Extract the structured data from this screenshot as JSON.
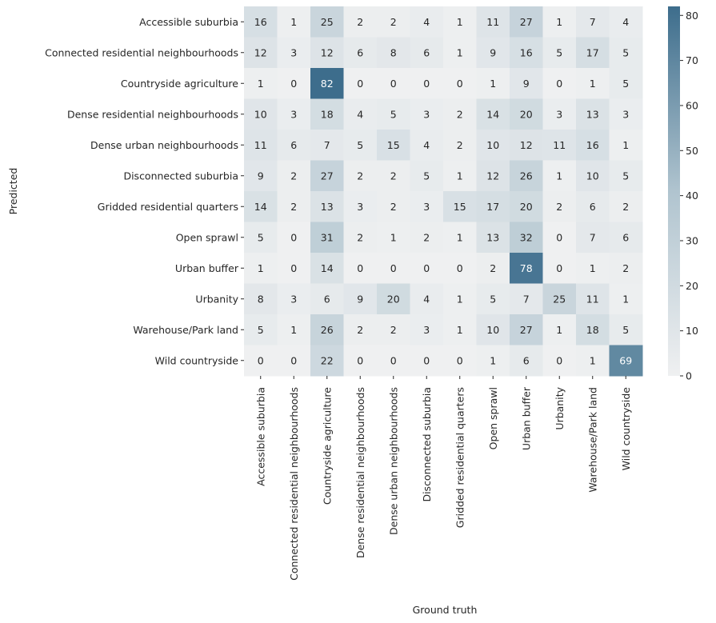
{
  "chart_data": {
    "type": "heatmap",
    "title": "",
    "xlabel": "Ground truth",
    "ylabel": "Predicted",
    "x_categories": [
      "Accessible suburbia",
      "Connected residential neighbourhoods",
      "Countryside agriculture",
      "Dense residential neighbourhoods",
      "Dense urban neighbourhoods",
      "Disconnected suburbia",
      "Gridded residential quarters",
      "Open sprawl",
      "Urban buffer",
      "Urbanity",
      "Warehouse/Park land",
      "Wild countryside"
    ],
    "y_categories": [
      "Accessible suburbia",
      "Connected residential neighbourhoods",
      "Countryside agriculture",
      "Dense residential neighbourhoods",
      "Dense urban neighbourhoods",
      "Disconnected suburbia",
      "Gridded residential quarters",
      "Open sprawl",
      "Urban buffer",
      "Urbanity",
      "Warehouse/Park land",
      "Wild countryside"
    ],
    "values": [
      [
        16,
        1,
        25,
        2,
        2,
        4,
        1,
        11,
        27,
        1,
        7,
        4
      ],
      [
        12,
        3,
        12,
        6,
        8,
        6,
        1,
        9,
        16,
        5,
        17,
        5
      ],
      [
        1,
        0,
        82,
        0,
        0,
        0,
        0,
        1,
        9,
        0,
        1,
        5
      ],
      [
        10,
        3,
        18,
        4,
        5,
        3,
        2,
        14,
        20,
        3,
        13,
        3
      ],
      [
        11,
        6,
        7,
        5,
        15,
        4,
        2,
        10,
        12,
        11,
        16,
        1
      ],
      [
        9,
        2,
        27,
        2,
        2,
        5,
        1,
        12,
        26,
        1,
        10,
        5
      ],
      [
        14,
        2,
        13,
        3,
        2,
        3,
        15,
        17,
        20,
        2,
        6,
        2
      ],
      [
        5,
        0,
        31,
        2,
        1,
        2,
        1,
        13,
        32,
        0,
        7,
        6
      ],
      [
        1,
        0,
        14,
        0,
        0,
        0,
        0,
        2,
        78,
        0,
        1,
        2
      ],
      [
        8,
        3,
        6,
        9,
        20,
        4,
        1,
        5,
        7,
        25,
        11,
        1
      ],
      [
        5,
        1,
        26,
        2,
        2,
        3,
        1,
        10,
        27,
        1,
        18,
        5
      ],
      [
        0,
        0,
        22,
        0,
        0,
        0,
        0,
        1,
        6,
        0,
        1,
        69
      ]
    ],
    "colorbar": {
      "range": [
        0,
        82
      ],
      "ticks": [
        0,
        10,
        20,
        30,
        40,
        50,
        60,
        70,
        80
      ],
      "color_low": "#eff0f1",
      "color_high": "#3d6d8c"
    },
    "annotation_color_dark": "#262626",
    "annotation_color_light": "#ffffff",
    "legend": "colorbar-right",
    "grid": false
  }
}
